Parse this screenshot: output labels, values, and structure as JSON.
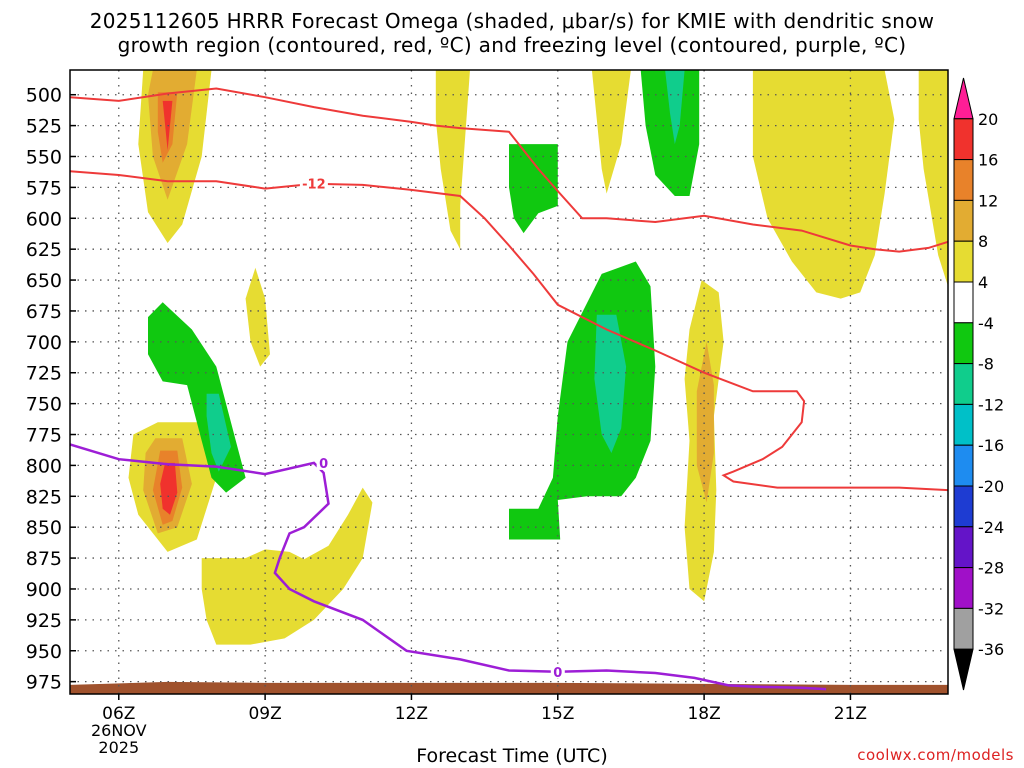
{
  "header": {
    "title_line1": "2025112605 HRRR Forecast Omega (shaded, μbar/s) for KMIE with dendritic snow",
    "title_line2": "growth region (contoured, red, ºC) and freezing level (contoured, purple, ºC)"
  },
  "footer": {
    "x_label": "Forecast Time (UTC)",
    "credit": "coolwx.com/models"
  },
  "chart_data": {
    "type": "heatmap",
    "title": "2025112605 HRRR Forecast Omega (shaded, μbar/s) for KMIE with dendritic snow growth region (contoured, red, ºC) and freezing level (contoured, purple, ºC)",
    "xlabel": "Forecast Time (UTC)",
    "ylabel": "",
    "x_range_hours": [
      5,
      23
    ],
    "y_range_hpa": [
      480,
      985
    ],
    "x_ticks": [
      {
        "hour": 6,
        "label": "06Z",
        "sub": [
          "26NOV",
          "2025"
        ]
      },
      {
        "hour": 9,
        "label": "09Z"
      },
      {
        "hour": 12,
        "label": "12Z"
      },
      {
        "hour": 15,
        "label": "15Z"
      },
      {
        "hour": 18,
        "label": "18Z"
      },
      {
        "hour": 21,
        "label": "21Z"
      }
    ],
    "y_ticks": [
      500,
      525,
      550,
      575,
      600,
      625,
      650,
      675,
      700,
      725,
      750,
      775,
      800,
      825,
      850,
      875,
      900,
      925,
      950,
      975
    ],
    "grid": true,
    "colorbar": {
      "labels": [
        "20",
        "16",
        "12",
        "8",
        "4",
        "-4",
        "-8",
        "-12",
        "-16",
        "-20",
        "-24",
        "-28",
        "-32",
        "-36"
      ],
      "bins": [
        {
          "color": "#ff1e96"
        },
        {
          "color": "#f0322d"
        },
        {
          "color": "#e8822a"
        },
        {
          "color": "#e2ac32"
        },
        {
          "color": "#e6dc32"
        },
        {
          "color": "#ffffff"
        },
        {
          "color": "#10c810"
        },
        {
          "color": "#10cd8c"
        },
        {
          "color": "#00c0c8"
        },
        {
          "color": "#1e8cf0"
        },
        {
          "color": "#1e3cd2"
        },
        {
          "color": "#6414c8"
        },
        {
          "color": "#a010c8"
        },
        {
          "color": "#a0a0a0"
        },
        {
          "color": "#000000"
        }
      ]
    },
    "omega_regions": [
      {
        "level": 4,
        "pts": [
          [
            6.5,
            480
          ],
          [
            7.9,
            480
          ],
          [
            7.7,
            550
          ],
          [
            7.3,
            605
          ],
          [
            7.0,
            620
          ],
          [
            6.6,
            595
          ],
          [
            6.4,
            540
          ]
        ]
      },
      {
        "level": 8,
        "pts": [
          [
            6.7,
            480
          ],
          [
            7.6,
            480
          ],
          [
            7.4,
            540
          ],
          [
            7.0,
            585
          ],
          [
            6.7,
            550
          ],
          [
            6.6,
            500
          ]
        ]
      },
      {
        "level": 12,
        "pts": [
          [
            6.8,
            498
          ],
          [
            7.2,
            498
          ],
          [
            7.1,
            540
          ],
          [
            6.9,
            555
          ],
          [
            6.8,
            530
          ]
        ]
      },
      {
        "level": 16,
        "pts": [
          [
            6.9,
            505
          ],
          [
            7.1,
            505
          ],
          [
            7.0,
            545
          ]
        ]
      },
      {
        "level": 4,
        "pts": [
          [
            6.8,
            765
          ],
          [
            7.8,
            765
          ],
          [
            8.0,
            810
          ],
          [
            7.6,
            860
          ],
          [
            7.0,
            870
          ],
          [
            6.4,
            840
          ],
          [
            6.2,
            810
          ],
          [
            6.3,
            775
          ]
        ]
      },
      {
        "level": 8,
        "pts": [
          [
            6.75,
            778
          ],
          [
            7.3,
            778
          ],
          [
            7.5,
            815
          ],
          [
            7.2,
            850
          ],
          [
            6.8,
            855
          ],
          [
            6.5,
            820
          ],
          [
            6.55,
            790
          ]
        ]
      },
      {
        "level": 12,
        "pts": [
          [
            6.85,
            788
          ],
          [
            7.2,
            788
          ],
          [
            7.3,
            818
          ],
          [
            7.1,
            845
          ],
          [
            6.9,
            848
          ],
          [
            6.7,
            820
          ]
        ]
      },
      {
        "level": 16,
        "pts": [
          [
            6.95,
            798
          ],
          [
            7.15,
            798
          ],
          [
            7.2,
            822
          ],
          [
            7.05,
            840
          ],
          [
            6.9,
            835
          ],
          [
            6.85,
            815
          ]
        ]
      },
      {
        "level": 4,
        "pts": [
          [
            8.8,
            640
          ],
          [
            9.0,
            665
          ],
          [
            9.1,
            710
          ],
          [
            8.9,
            720
          ],
          [
            8.7,
            700
          ],
          [
            8.6,
            665
          ]
        ]
      },
      {
        "level": 4,
        "pts": [
          [
            7.7,
            875
          ],
          [
            8.6,
            875
          ],
          [
            9.0,
            868
          ],
          [
            9.5,
            870
          ],
          [
            9.8,
            876
          ],
          [
            10.3,
            865
          ],
          [
            10.7,
            840
          ],
          [
            11.0,
            818
          ],
          [
            11.2,
            830
          ],
          [
            11.0,
            875
          ],
          [
            10.6,
            900
          ],
          [
            10.0,
            925
          ],
          [
            9.4,
            940
          ],
          [
            8.7,
            945
          ],
          [
            8.0,
            945
          ],
          [
            7.8,
            925
          ],
          [
            7.7,
            900
          ]
        ]
      },
      {
        "level": -4,
        "pts": [
          [
            6.6,
            680
          ],
          [
            6.9,
            668
          ],
          [
            7.5,
            690
          ],
          [
            8.0,
            720
          ],
          [
            8.4,
            780
          ],
          [
            8.6,
            810
          ],
          [
            8.2,
            822
          ],
          [
            7.9,
            810
          ],
          [
            7.7,
            780
          ],
          [
            7.4,
            735
          ],
          [
            6.9,
            732
          ],
          [
            6.6,
            710
          ]
        ]
      },
      {
        "level": -8,
        "pts": [
          [
            7.8,
            742
          ],
          [
            8.05,
            742
          ],
          [
            8.3,
            785
          ],
          [
            8.05,
            805
          ],
          [
            7.9,
            790
          ],
          [
            7.8,
            760
          ]
        ]
      },
      {
        "level": 4,
        "pts": [
          [
            12.5,
            480
          ],
          [
            13.2,
            480
          ],
          [
            13.0,
            590
          ],
          [
            13.0,
            625
          ],
          [
            12.8,
            610
          ],
          [
            12.6,
            560
          ],
          [
            12.5,
            520
          ]
        ]
      },
      {
        "level": -4,
        "pts": [
          [
            14.0,
            540
          ],
          [
            15.0,
            540
          ],
          [
            15.0,
            590
          ],
          [
            14.6,
            596
          ],
          [
            14.3,
            612
          ],
          [
            14.1,
            600
          ],
          [
            14.0,
            575
          ]
        ]
      },
      {
        "level": 4,
        "pts": [
          [
            15.7,
            480
          ],
          [
            16.5,
            480
          ],
          [
            16.3,
            540
          ],
          [
            16.0,
            580
          ],
          [
            15.9,
            560
          ],
          [
            15.8,
            520
          ]
        ]
      },
      {
        "level": -4,
        "pts": [
          [
            16.7,
            480
          ],
          [
            17.9,
            480
          ],
          [
            17.9,
            540
          ],
          [
            17.7,
            582
          ],
          [
            17.4,
            582
          ],
          [
            17.0,
            565
          ],
          [
            16.8,
            525
          ]
        ]
      },
      {
        "level": -8,
        "pts": [
          [
            17.2,
            480
          ],
          [
            17.6,
            480
          ],
          [
            17.5,
            525
          ],
          [
            17.4,
            540
          ],
          [
            17.3,
            515
          ]
        ]
      },
      {
        "level": -4,
        "pts": [
          [
            15.9,
            645
          ],
          [
            16.6,
            635
          ],
          [
            16.9,
            655
          ],
          [
            17.0,
            720
          ],
          [
            16.9,
            780
          ],
          [
            16.6,
            810
          ],
          [
            16.3,
            825
          ],
          [
            15.6,
            825
          ],
          [
            15.0,
            828
          ],
          [
            15.05,
            860
          ],
          [
            14.0,
            860
          ],
          [
            14.0,
            835
          ],
          [
            14.6,
            835
          ],
          [
            14.9,
            810
          ],
          [
            15.0,
            760
          ],
          [
            15.2,
            700
          ]
        ]
      },
      {
        "level": -8,
        "pts": [
          [
            15.8,
            678
          ],
          [
            16.2,
            678
          ],
          [
            16.4,
            720
          ],
          [
            16.3,
            770
          ],
          [
            16.1,
            790
          ],
          [
            15.9,
            775
          ],
          [
            15.75,
            730
          ]
        ]
      },
      {
        "level": 4,
        "pts": [
          [
            17.95,
            650
          ],
          [
            18.3,
            660
          ],
          [
            18.4,
            700
          ],
          [
            18.2,
            760
          ],
          [
            18.25,
            820
          ],
          [
            18.2,
            870
          ],
          [
            18.0,
            910
          ],
          [
            17.7,
            900
          ],
          [
            17.6,
            850
          ],
          [
            17.7,
            780
          ],
          [
            17.6,
            730
          ],
          [
            17.7,
            690
          ]
        ]
      },
      {
        "level": 8,
        "pts": [
          [
            18.05,
            700
          ],
          [
            18.2,
            735
          ],
          [
            18.2,
            790
          ],
          [
            18.05,
            830
          ],
          [
            17.85,
            800
          ],
          [
            17.85,
            740
          ]
        ]
      },
      {
        "level": 4,
        "pts": [
          [
            19.0,
            480
          ],
          [
            21.7,
            480
          ],
          [
            21.9,
            520
          ],
          [
            21.7,
            580
          ],
          [
            21.5,
            630
          ],
          [
            21.2,
            660
          ],
          [
            20.8,
            665
          ],
          [
            20.3,
            660
          ],
          [
            19.8,
            635
          ],
          [
            19.3,
            600
          ],
          [
            19.0,
            550
          ]
        ]
      },
      {
        "level": 4,
        "pts": [
          [
            22.4,
            480
          ],
          [
            23.0,
            480
          ],
          [
            23.0,
            655
          ],
          [
            22.8,
            630
          ],
          [
            22.5,
            560
          ],
          [
            22.4,
            520
          ]
        ]
      }
    ],
    "dgz_contours": [
      {
        "label": "-12",
        "pts": [
          [
            5.0,
            502
          ],
          [
            6.0,
            505
          ],
          [
            7.0,
            499
          ],
          [
            8.0,
            495
          ],
          [
            9.0,
            502
          ],
          [
            10.0,
            510
          ],
          [
            11.0,
            517
          ],
          [
            12.0,
            522
          ],
          [
            12.5,
            525
          ],
          [
            13.0,
            527
          ],
          [
            14.0,
            530
          ],
          [
            14.3,
            545
          ],
          [
            14.6,
            560
          ],
          [
            15.0,
            578
          ],
          [
            15.5,
            600
          ],
          [
            16.0,
            600
          ],
          [
            17.0,
            603
          ],
          [
            18.0,
            598
          ],
          [
            19.0,
            605
          ],
          [
            20.0,
            610
          ],
          [
            21.0,
            622
          ],
          [
            21.5,
            625
          ],
          [
            22.0,
            627
          ],
          [
            22.6,
            624
          ],
          [
            23.0,
            619
          ]
        ]
      },
      {
        "label": "-12",
        "label_hour": 10.0,
        "pts": [
          [
            5.0,
            562
          ],
          [
            6.0,
            565
          ],
          [
            7.0,
            570
          ],
          [
            8.0,
            570
          ],
          [
            9.0,
            576
          ],
          [
            10.0,
            572
          ],
          [
            11.0,
            573
          ],
          [
            12.0,
            577
          ],
          [
            13.0,
            582
          ],
          [
            13.5,
            600
          ],
          [
            14.0,
            622
          ],
          [
            14.5,
            645
          ],
          [
            15.0,
            670
          ],
          [
            16.0,
            690
          ],
          [
            17.0,
            707
          ],
          [
            18.0,
            725
          ],
          [
            19.0,
            740
          ],
          [
            19.9,
            740
          ],
          [
            20.05,
            748
          ],
          [
            20.0,
            765
          ],
          [
            19.6,
            785
          ],
          [
            19.2,
            795
          ],
          [
            18.6,
            805
          ],
          [
            18.4,
            808
          ],
          [
            18.6,
            813
          ],
          [
            19.5,
            818
          ],
          [
            21.0,
            818
          ],
          [
            22.0,
            818
          ],
          [
            23.0,
            820
          ]
        ]
      }
    ],
    "freezing_level": {
      "label": "0",
      "pts": [
        [
          5.0,
          783
        ],
        [
          6.0,
          795
        ],
        [
          7.0,
          799
        ],
        [
          8.0,
          801
        ],
        [
          9.0,
          807
        ],
        [
          10.0,
          798
        ],
        [
          10.2,
          806
        ],
        [
          10.3,
          831
        ],
        [
          9.8,
          850
        ],
        [
          9.5,
          855
        ],
        [
          9.3,
          875
        ],
        [
          9.2,
          887
        ],
        [
          9.5,
          900
        ],
        [
          10.0,
          910
        ],
        [
          11.0,
          925
        ],
        [
          11.9,
          950
        ],
        [
          13.0,
          957
        ],
        [
          14.0,
          966
        ],
        [
          15.0,
          967
        ],
        [
          16.0,
          966
        ],
        [
          17.0,
          968
        ],
        [
          17.8,
          972
        ],
        [
          18.5,
          978
        ],
        [
          19.0,
          979
        ],
        [
          20.0,
          980
        ],
        [
          20.5,
          981
        ]
      ]
    },
    "surface": {
      "color": "#a0522d",
      "top_hpa": 976
    }
  }
}
